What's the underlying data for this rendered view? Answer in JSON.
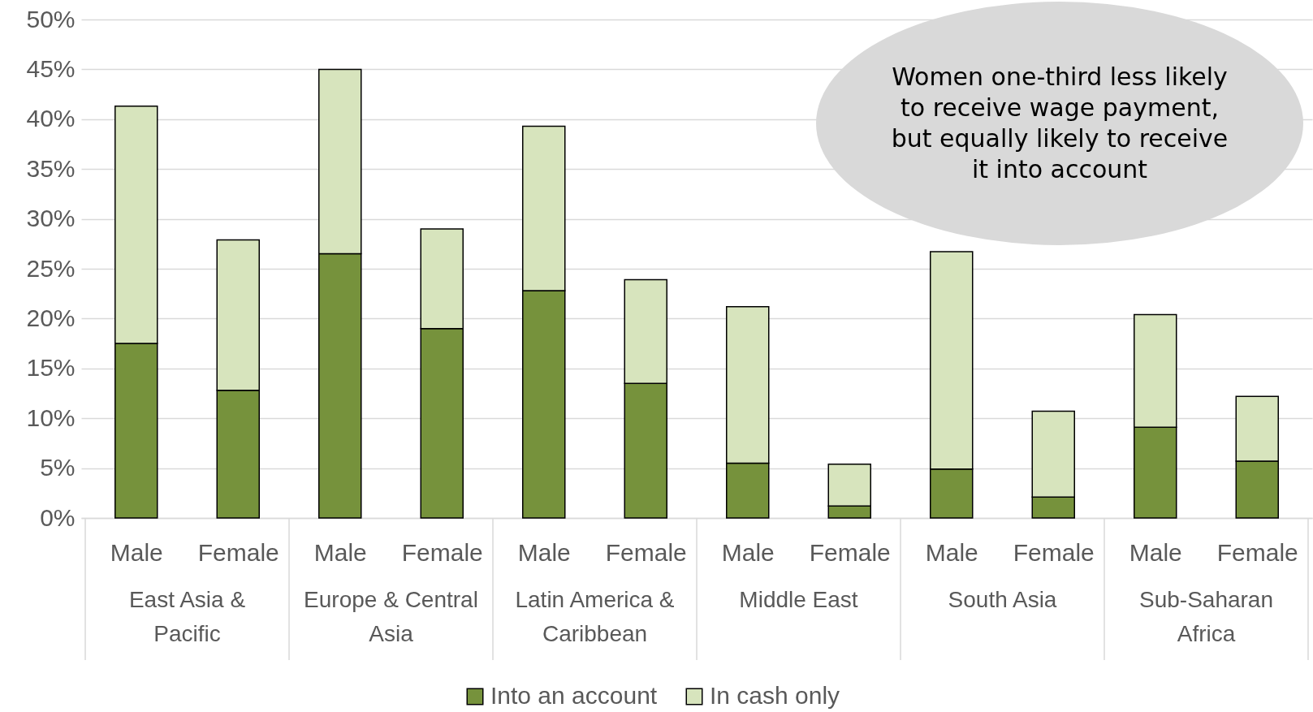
{
  "chart_data": {
    "type": "bar",
    "stacked": true,
    "categories": [
      "Male",
      "Female",
      "Male",
      "Female",
      "Male",
      "Female",
      "Male",
      "Female",
      "Male",
      "Female",
      "Male",
      "Female"
    ],
    "series": [
      {
        "name": "Into an account",
        "color": "#76923c",
        "values": [
          17.5,
          12.8,
          26.5,
          19.0,
          22.8,
          13.5,
          5.5,
          1.2,
          4.9,
          2.1,
          9.1,
          5.7
        ]
      },
      {
        "name": "In cash only",
        "color": "#d7e4bd",
        "values": [
          23.8,
          15.1,
          18.5,
          10.0,
          16.5,
          10.4,
          15.7,
          4.2,
          21.8,
          8.6,
          11.3,
          6.5
        ]
      }
    ],
    "ylim": [
      0,
      50
    ],
    "yticks": [
      {
        "value": 0,
        "label": "0%"
      },
      {
        "value": 5,
        "label": "5%"
      },
      {
        "value": 10,
        "label": "10%"
      },
      {
        "value": 15,
        "label": "15%"
      },
      {
        "value": 20,
        "label": "20%"
      },
      {
        "value": 25,
        "label": "25%"
      },
      {
        "value": 30,
        "label": "30%"
      },
      {
        "value": 35,
        "label": "35%"
      },
      {
        "value": 40,
        "label": "40%"
      },
      {
        "value": 45,
        "label": "45%"
      },
      {
        "value": 50,
        "label": "50%"
      }
    ],
    "grid": "y",
    "legend": "bottom",
    "annotations": [
      "East Asia & Pacific",
      "Europe & Central Asia",
      "Latin America & Caribbean",
      "Middle East",
      "South Asia",
      "Sub-Saharan Africa",
      "Women one-third less likely to receive wage payment, but equally likely to receive it into account"
    ]
  }
}
